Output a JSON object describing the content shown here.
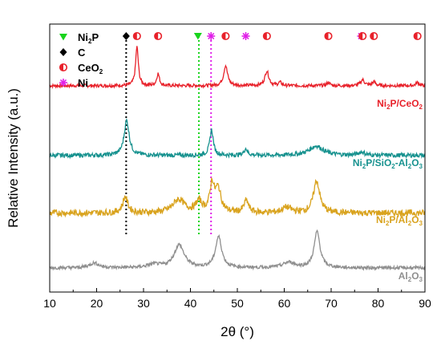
{
  "chart_data": {
    "type": "line",
    "xlabel": "2θ (°)",
    "ylabel": "Relative Intensity (a.u.)",
    "xlim": [
      10,
      90
    ],
    "x_ticks": [
      10,
      20,
      30,
      40,
      50,
      60,
      70,
      80,
      90
    ],
    "y_ticks_shown": false,
    "legend": {
      "placement": "top-left",
      "entries": [
        {
          "symbol": "triangle-down",
          "color": "#18d41c",
          "text": "Ni",
          "sub": "2",
          "text2": "P"
        },
        {
          "symbol": "diamond",
          "color": "#000000",
          "text": "C"
        },
        {
          "symbol": "half-circle",
          "color": "#e8212a",
          "text": "CeO",
          "sub": "2",
          "text2": ""
        },
        {
          "symbol": "asterisk",
          "color": "#e020e8",
          "text": "Ni"
        }
      ]
    },
    "series": [
      {
        "name": "Ni2P/CeO2",
        "label_parts": [
          [
            "Ni",
            false
          ],
          [
            "2",
            true
          ],
          [
            "P/CeO",
            false
          ],
          [
            "2",
            true
          ]
        ],
        "color": "#e8212a",
        "base": 0.77,
        "noise": 0.006,
        "peaks": [
          [
            28.6,
            0.145,
            0.35
          ],
          [
            33.1,
            0.045,
            0.35
          ],
          [
            47.5,
            0.075,
            0.5
          ],
          [
            56.3,
            0.055,
            0.5
          ],
          [
            59.1,
            0.012,
            0.4
          ],
          [
            69.4,
            0.012,
            0.4
          ],
          [
            76.7,
            0.022,
            0.5
          ],
          [
            79.1,
            0.015,
            0.4
          ],
          [
            88.4,
            0.012,
            0.4
          ]
        ]
      },
      {
        "name": "Ni2P/SiO2-Al2O3",
        "label_parts": [
          [
            "Ni",
            false
          ],
          [
            "2",
            true
          ],
          [
            "P/SiO",
            false
          ],
          [
            "2",
            true
          ],
          [
            "-Al",
            false
          ],
          [
            "2",
            true
          ],
          [
            "O",
            false
          ],
          [
            "3",
            true
          ]
        ],
        "color": "#17928f",
        "base": 0.51,
        "noise": 0.008,
        "peaks": [
          [
            26.4,
            0.13,
            0.65
          ],
          [
            44.5,
            0.095,
            0.45
          ],
          [
            51.8,
            0.025,
            0.45
          ],
          [
            66.8,
            0.035,
            1.8
          ],
          [
            76.5,
            0.012,
            0.8
          ]
        ]
      },
      {
        "name": "Ni2P/Al2O3",
        "label_parts": [
          [
            "Ni",
            false
          ],
          [
            "2",
            true
          ],
          [
            "P/Al",
            false
          ],
          [
            "2",
            true
          ],
          [
            "O",
            false
          ],
          [
            "3",
            true
          ]
        ],
        "color": "#d9a31e",
        "base": 0.295,
        "noise": 0.012,
        "peaks": [
          [
            26.1,
            0.06,
            0.65
          ],
          [
            37.5,
            0.05,
            1.5
          ],
          [
            41.8,
            0.04,
            0.8
          ],
          [
            44.6,
            0.1,
            0.55
          ],
          [
            45.9,
            0.085,
            0.75
          ],
          [
            51.9,
            0.045,
            0.6
          ],
          [
            60.5,
            0.02,
            1.2
          ],
          [
            66.9,
            0.12,
            0.8
          ]
        ]
      },
      {
        "name": "Al2O3",
        "label_parts": [
          [
            "Al",
            false
          ],
          [
            "2",
            true
          ],
          [
            "O",
            false
          ],
          [
            "3",
            true
          ]
        ],
        "color": "#8f8f8f",
        "base": 0.09,
        "noise": 0.006,
        "peaks": [
          [
            19.5,
            0.018,
            1.2
          ],
          [
            32.2,
            0.012,
            1.5
          ],
          [
            37.6,
            0.085,
            1.3
          ],
          [
            46,
            0.115,
            0.8
          ],
          [
            61,
            0.02,
            1.5
          ],
          [
            67,
            0.135,
            0.75
          ]
        ]
      }
    ],
    "reference_lines": [
      {
        "x": 26.3,
        "color": "#000000"
      },
      {
        "x": 41.8,
        "color": "#18d41c"
      },
      {
        "x": 44.4,
        "color": "#e020e8"
      }
    ],
    "markers_row": [
      {
        "x": 26.3,
        "symbol": "diamond",
        "color": "#000000"
      },
      {
        "x": 28.6,
        "symbol": "half-circle",
        "color": "#e8212a"
      },
      {
        "x": 33.1,
        "symbol": "half-circle",
        "color": "#e8212a"
      },
      {
        "x": 41.6,
        "symbol": "triangle-down",
        "color": "#18d41c"
      },
      {
        "x": 44.4,
        "symbol": "asterisk",
        "color": "#e020e8"
      },
      {
        "x": 47.5,
        "symbol": "half-circle",
        "color": "#e8212a"
      },
      {
        "x": 51.8,
        "symbol": "asterisk",
        "color": "#e020e8"
      },
      {
        "x": 56.3,
        "symbol": "half-circle",
        "color": "#e8212a"
      },
      {
        "x": 69.4,
        "symbol": "half-circle",
        "color": "#e8212a"
      },
      {
        "x": 76.4,
        "symbol": "asterisk",
        "color": "#e020e8"
      },
      {
        "x": 76.7,
        "symbol": "half-circle",
        "color": "#e8212a"
      },
      {
        "x": 79.1,
        "symbol": "half-circle",
        "color": "#e8212a"
      },
      {
        "x": 88.4,
        "symbol": "half-circle",
        "color": "#e8212a"
      }
    ]
  }
}
